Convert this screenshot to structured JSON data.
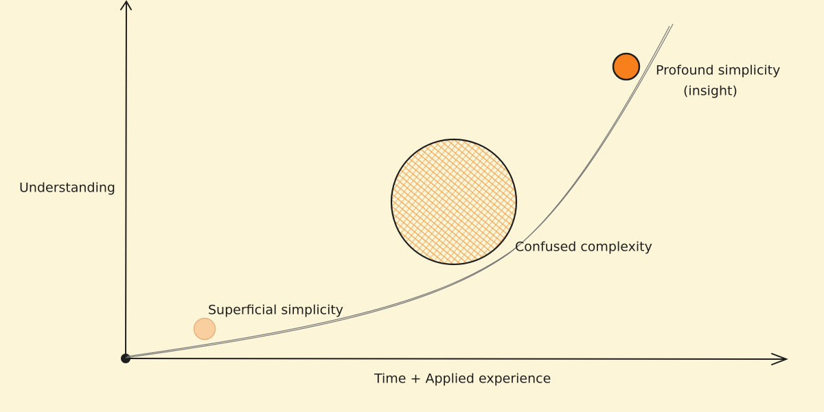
{
  "axes": {
    "y_label": "Understanding",
    "x_label": "Time + Applied experience"
  },
  "points": [
    {
      "label": "Superficial simplicity"
    },
    {
      "label": "Confused complexity"
    },
    {
      "label": "Profound simplicity",
      "sublabel": "(insight)"
    }
  ]
}
